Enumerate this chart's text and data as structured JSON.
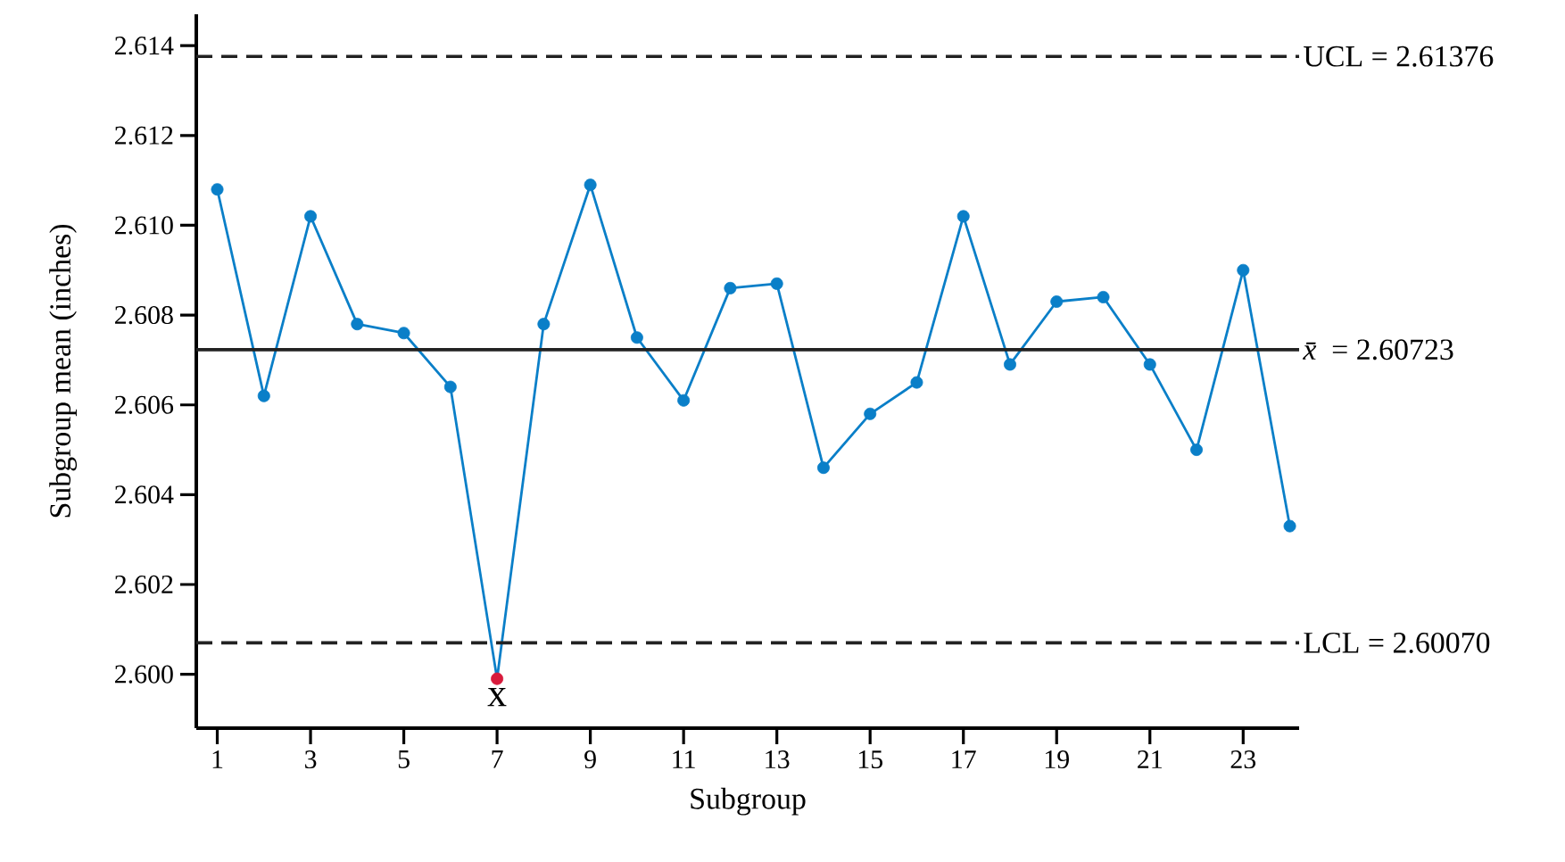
{
  "chart_data": {
    "type": "line",
    "xlabel": "Subgroup",
    "ylabel": "Subgroup mean (inches)",
    "x": [
      1,
      2,
      3,
      4,
      5,
      6,
      7,
      8,
      9,
      10,
      11,
      12,
      13,
      14,
      15,
      16,
      17,
      18,
      19,
      20,
      21,
      22,
      23,
      24
    ],
    "series": [
      {
        "color": "#0a7fc8",
        "values": [
          2.6108,
          2.6062,
          2.6102,
          2.6078,
          2.6076,
          2.6064,
          2.5999,
          2.6078,
          2.6109,
          2.6075,
          2.6061,
          2.6086,
          2.6087,
          2.6046,
          2.6058,
          2.6065,
          2.6102,
          2.6069,
          2.6083,
          2.6084,
          2.6069,
          2.605,
          2.609,
          2.6033
        ],
        "colors": [
          "#0a7fc8",
          "#0a7fc8",
          "#0a7fc8",
          "#0a7fc8",
          "#0a7fc8",
          "#0a7fc8",
          "#d81b3c",
          "#0a7fc8",
          "#0a7fc8",
          "#0a7fc8",
          "#0a7fc8",
          "#0a7fc8",
          "#0a7fc8",
          "#0a7fc8",
          "#0a7fc8",
          "#0a7fc8",
          "#0a7fc8",
          "#0a7fc8",
          "#0a7fc8",
          "#0a7fc8",
          "#0a7fc8",
          "#0a7fc8",
          "#0a7fc8",
          "#0a7fc8"
        ]
      }
    ],
    "marker": "circle",
    "line_style": "solid",
    "xlim": [
      0.55,
      24.2
    ],
    "ylim": [
      2.5988,
      2.6147
    ],
    "xticks": [
      1,
      3,
      5,
      7,
      9,
      11,
      13,
      15,
      17,
      19,
      21,
      23
    ],
    "yticks": [
      {
        "value": 2.6,
        "label": "2.600"
      },
      {
        "value": 2.602,
        "label": "2.602"
      },
      {
        "value": 2.604,
        "label": "2.604"
      },
      {
        "value": 2.606,
        "label": "2.606"
      },
      {
        "value": 2.608,
        "label": "2.608"
      },
      {
        "value": 2.61,
        "label": "2.610"
      },
      {
        "value": 2.612,
        "label": "2.612"
      },
      {
        "value": 2.614,
        "label": "2.614"
      }
    ],
    "ref_lines": [
      {
        "axis": "y",
        "value": 2.61376,
        "label": "UCL = 2.61376",
        "line_style": "dashed",
        "color": "#222222"
      },
      {
        "axis": "y",
        "value": 2.60723,
        "label": "*x̄* = 2.60723",
        "line_style": "solid",
        "color": "#222222"
      },
      {
        "axis": "y",
        "value": 2.6007,
        "label": "LCL = 2.60070",
        "line_style": "dashed",
        "color": "#222222"
      }
    ],
    "annotations": [
      {
        "text": "x",
        "x": 7,
        "y": 2.5999
      }
    ],
    "grid": false
  }
}
